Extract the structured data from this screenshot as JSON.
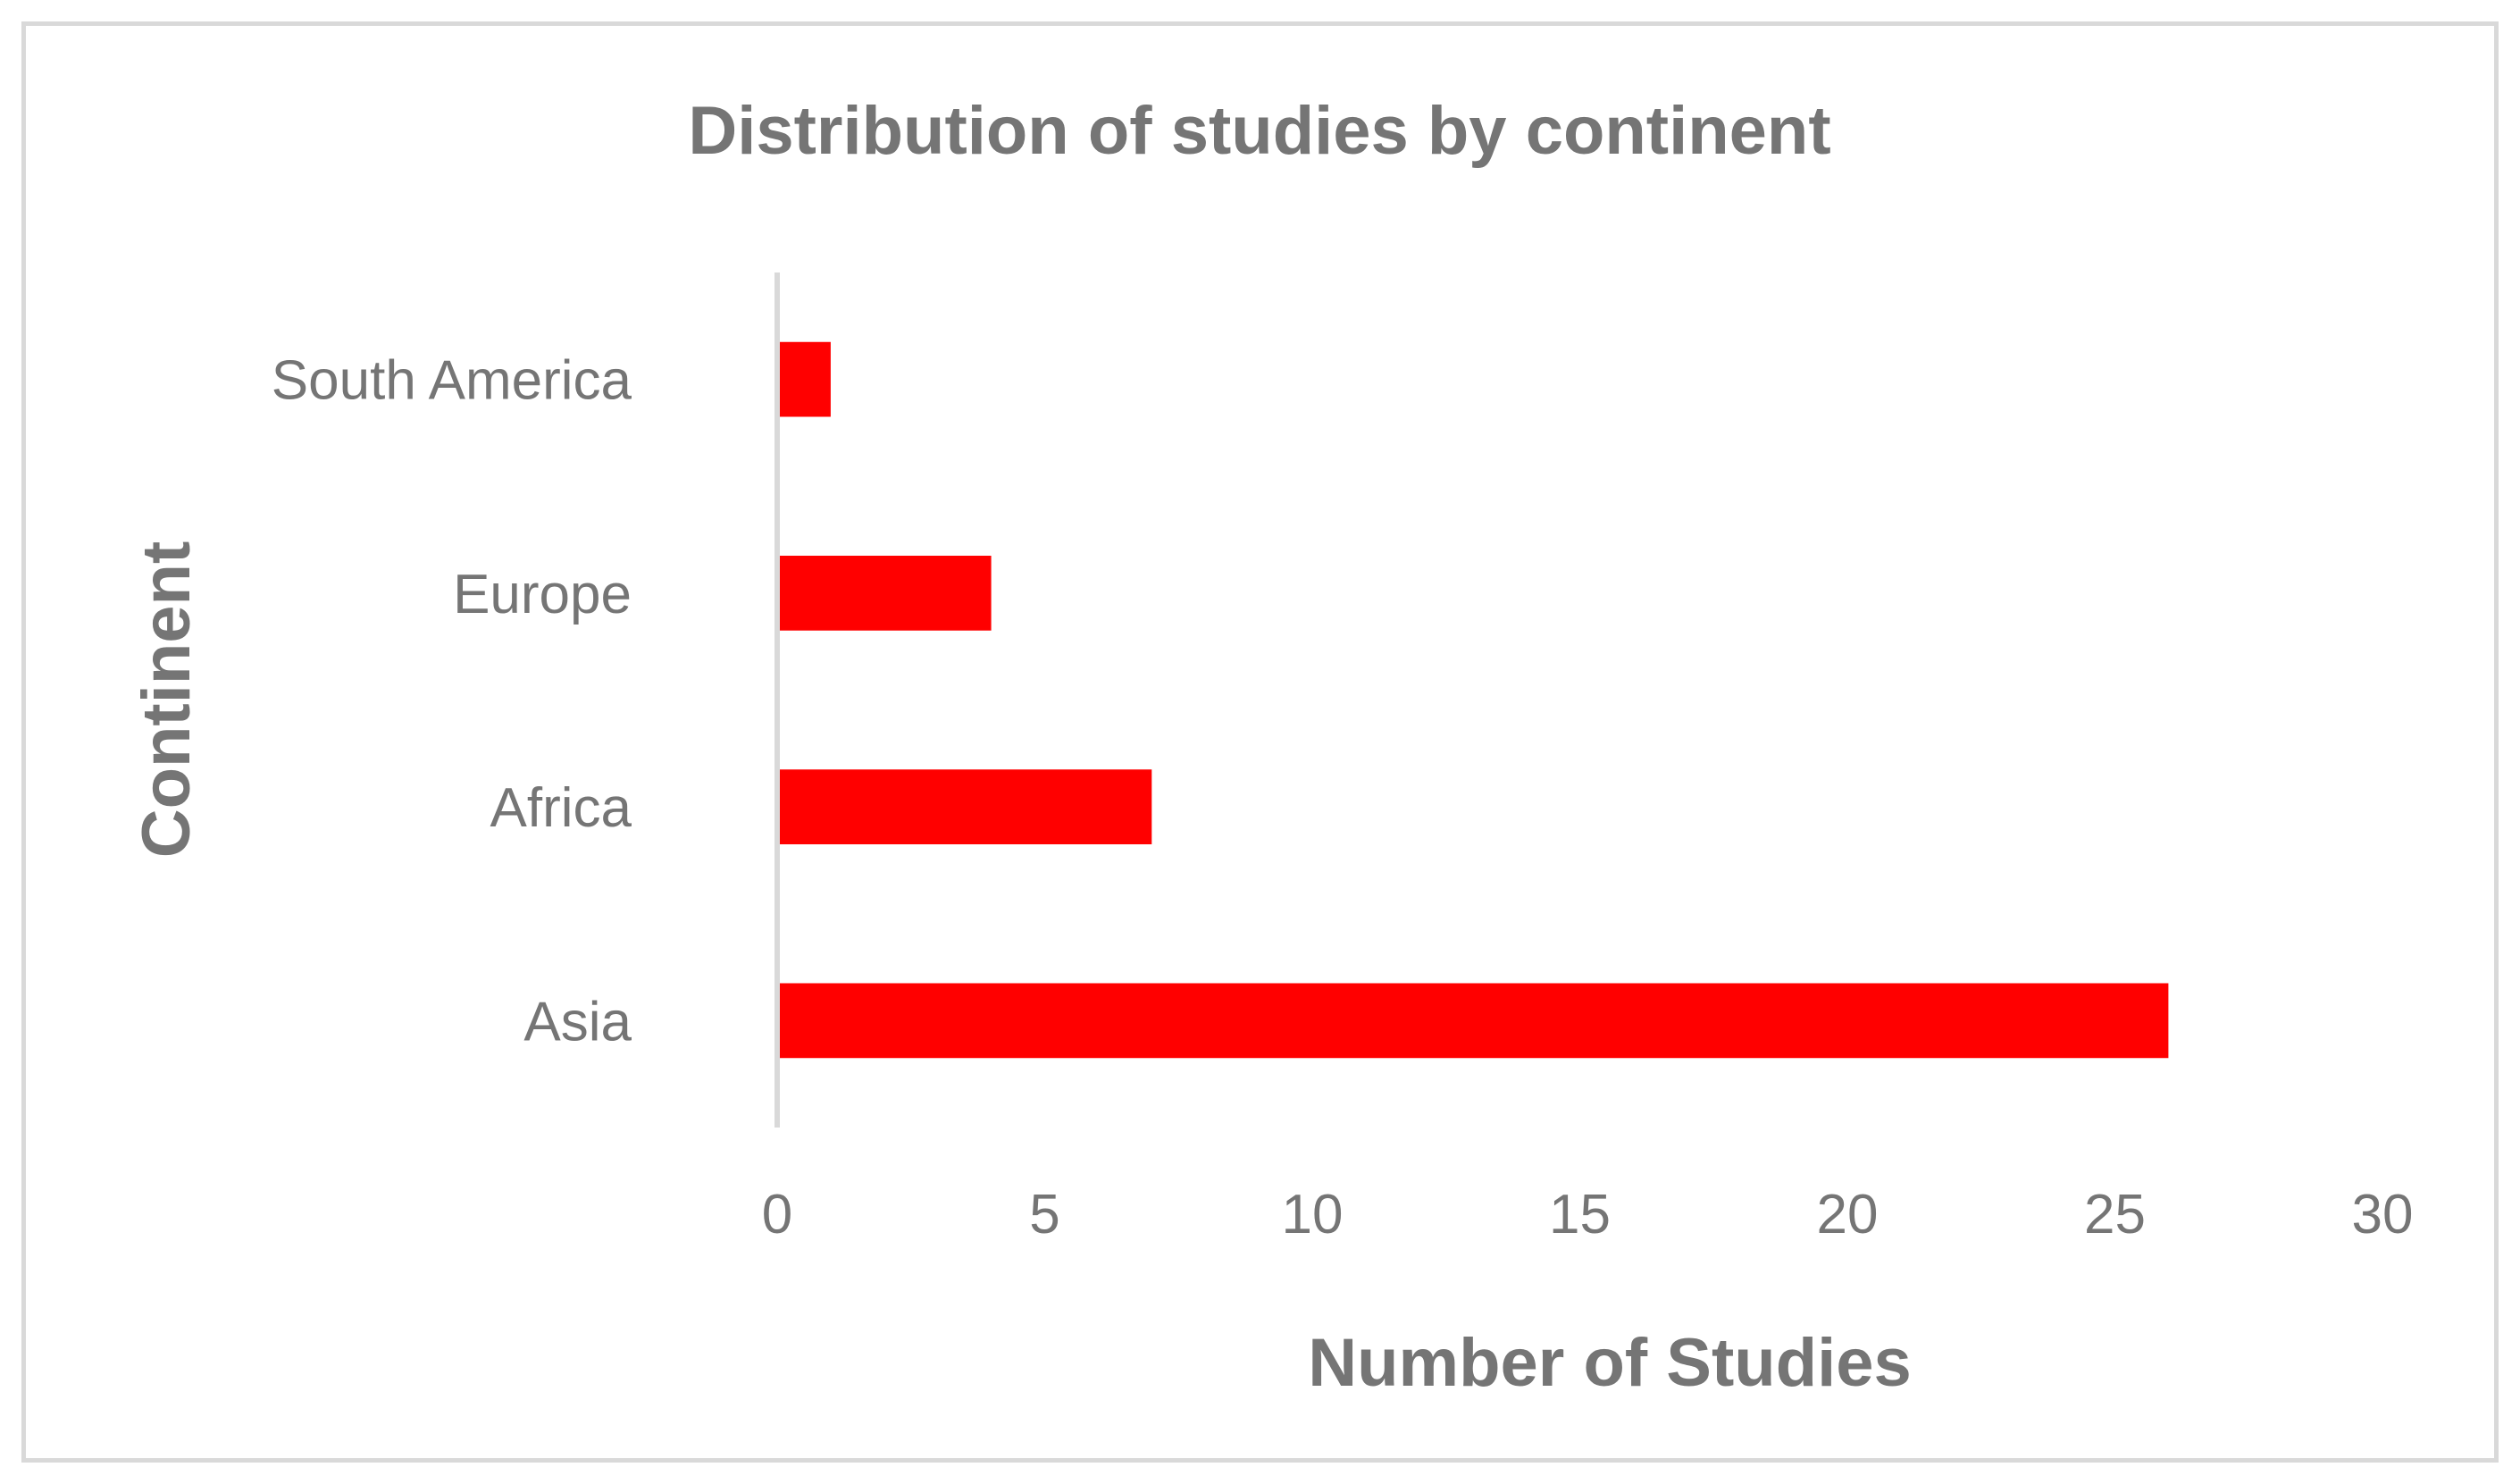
{
  "chart_data": {
    "type": "bar",
    "orientation": "horizontal",
    "title": "Distribution of studies by continent",
    "xlabel": "Number of Studies",
    "ylabel": "Continent",
    "categories": [
      "South America",
      "Europe",
      "Africa",
      "Asia"
    ],
    "values": [
      1,
      4,
      7,
      26
    ],
    "xlim": [
      0,
      30
    ],
    "x_ticks": [
      0,
      5,
      10,
      15,
      20,
      25,
      30
    ],
    "grid": false,
    "legend": "none",
    "bar_color": "#ff0000",
    "text_color": "#757575",
    "axis_color": "#d9d9d9"
  }
}
